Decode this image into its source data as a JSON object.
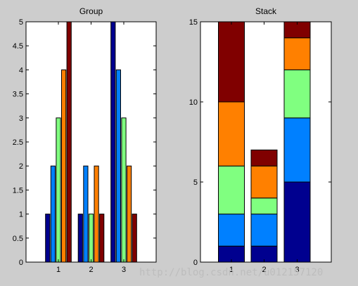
{
  "window": {
    "background": "#cdcdcd"
  },
  "watermark": "http://blog.csdn.net/u012157120",
  "chart_data": [
    {
      "type": "bar",
      "mode": "grouped",
      "title": "Group",
      "categories": [
        "1",
        "2",
        "3"
      ],
      "ylim": [
        0,
        5
      ],
      "yticks": [
        "0",
        "0.5",
        "1",
        "1.5",
        "2",
        "2.5",
        "3",
        "3.5",
        "4",
        "4.5",
        "5"
      ],
      "grid": false,
      "series": [
        {
          "color": "#00008f",
          "values": [
            1,
            1,
            5
          ]
        },
        {
          "color": "#0080ff",
          "values": [
            2,
            2,
            4
          ]
        },
        {
          "color": "#80ff80",
          "values": [
            3,
            1,
            3
          ]
        },
        {
          "color": "#ff8000",
          "values": [
            4,
            2,
            2
          ]
        },
        {
          "color": "#800000",
          "values": [
            5,
            1,
            1
          ]
        }
      ]
    },
    {
      "type": "bar",
      "mode": "stacked",
      "title": "Stack",
      "categories": [
        "1",
        "2",
        "3"
      ],
      "ylim": [
        0,
        15
      ],
      "yticks": [
        "0",
        "5",
        "10",
        "15"
      ],
      "grid": false,
      "series": [
        {
          "color": "#00008f",
          "values": [
            1,
            1,
            5
          ]
        },
        {
          "color": "#0080ff",
          "values": [
            2,
            2,
            4
          ]
        },
        {
          "color": "#80ff80",
          "values": [
            3,
            1,
            3
          ]
        },
        {
          "color": "#ff8000",
          "values": [
            4,
            2,
            2
          ]
        },
        {
          "color": "#800000",
          "values": [
            5,
            1,
            1
          ]
        }
      ]
    }
  ]
}
